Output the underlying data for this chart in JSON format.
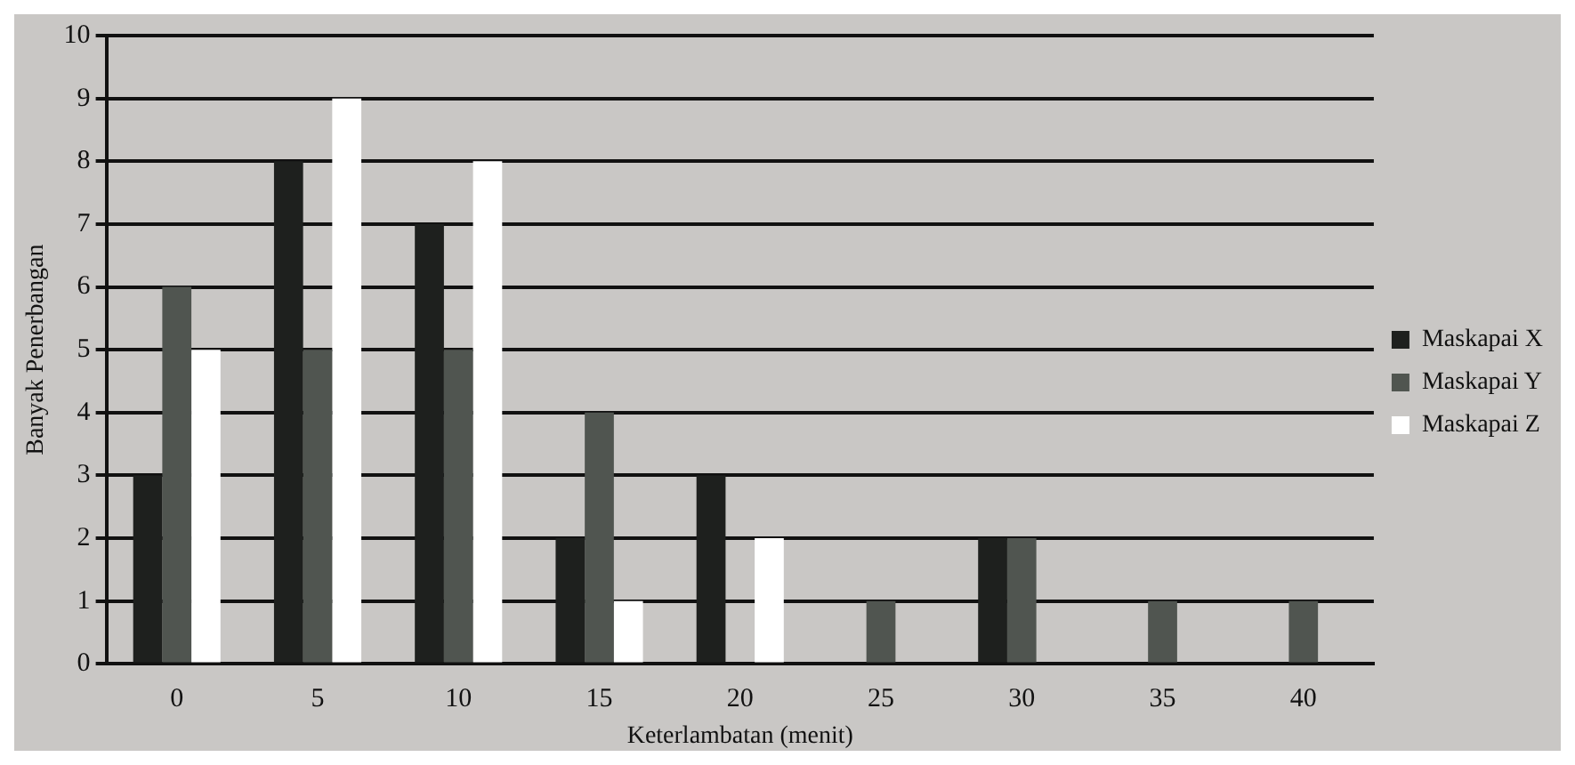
{
  "chart_data": {
    "type": "bar",
    "xlabel": "Keterlambatan (menit)",
    "ylabel": "Banyak Penerbangan",
    "categories": [
      "0",
      "5",
      "10",
      "15",
      "20",
      "25",
      "30",
      "35",
      "40"
    ],
    "series": [
      {
        "name": "Maskapai X",
        "color": "#1e201e",
        "values": [
          3,
          8,
          7,
          2,
          3,
          0,
          2,
          0,
          0
        ]
      },
      {
        "name": "Maskapai Y",
        "color": "#505550",
        "values": [
          6,
          5,
          5,
          4,
          0,
          1,
          2,
          1,
          1
        ]
      },
      {
        "name": "Maskapai Z",
        "color": "#ffffff",
        "values": [
          5,
          9,
          8,
          1,
          2,
          0,
          0,
          0,
          0
        ]
      }
    ],
    "ylim": [
      0,
      10
    ],
    "yticks": [
      0,
      1,
      2,
      3,
      4,
      5,
      6,
      7,
      8,
      9,
      10
    ],
    "grid": "y",
    "legend": "right"
  }
}
